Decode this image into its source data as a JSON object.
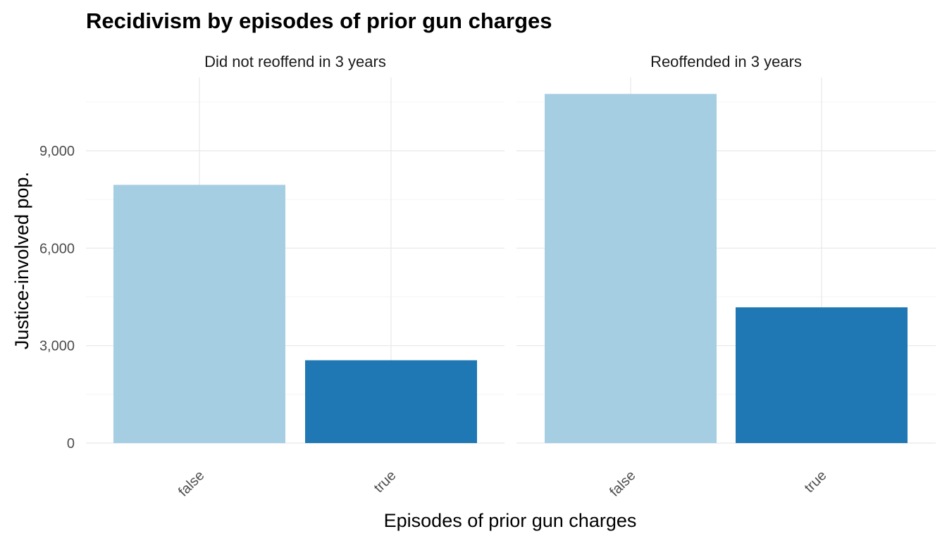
{
  "chart_data": {
    "type": "bar",
    "title": "Recidivism by episodes of prior gun charges",
    "xlabel": "Episodes of prior gun charges",
    "ylabel": "Justice-involved pop.",
    "categories": [
      "false",
      "true"
    ],
    "ylim": [
      0,
      11300
    ],
    "yticks": [
      0,
      3000,
      6000,
      9000
    ],
    "ytick_labels": [
      "0",
      "3,000",
      "6,000",
      "9,000"
    ],
    "grid": true,
    "legend": "none",
    "colors": {
      "false": "#a6cee3",
      "true": "#1f78b4"
    },
    "facets": [
      {
        "label": "Did not reoffend in 3 years",
        "values": [
          7950,
          2550
        ]
      },
      {
        "label": "Reoffended in 3 years",
        "values": [
          10750,
          4180
        ]
      }
    ]
  }
}
